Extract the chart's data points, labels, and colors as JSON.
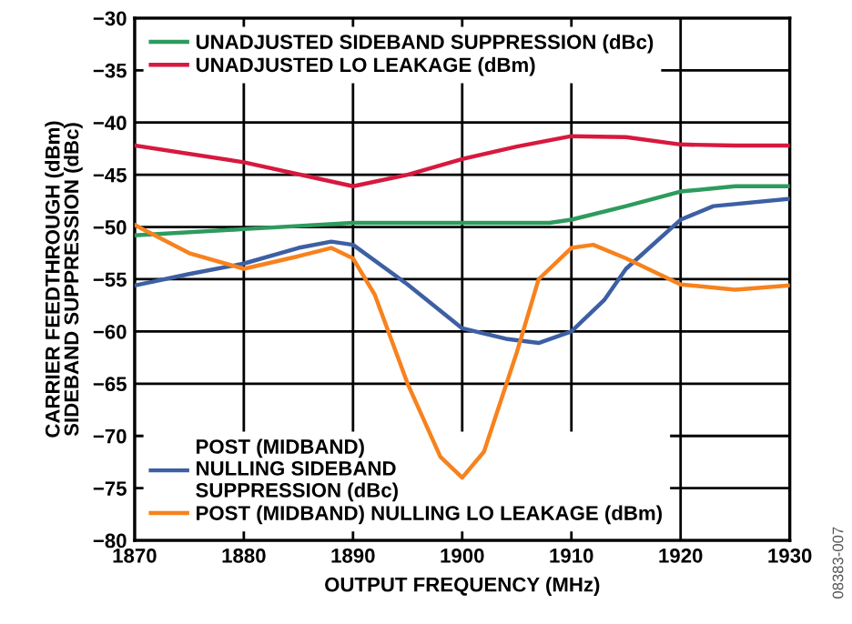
{
  "chart_data": {
    "type": "line",
    "xlabel": "OUTPUT FREQUENCY (MHz)",
    "ylabel": "CARRIER FEEDTHROUGH (dBm)\nSIDEBAND SUPPRESSION (dBc)",
    "xlim": [
      1870,
      1930
    ],
    "xticks": [
      1870,
      1880,
      1890,
      1900,
      1910,
      1920,
      1930
    ],
    "ylim": [
      -80,
      -30
    ],
    "yticks": [
      {
        "value": -80,
        "label": "−80"
      },
      {
        "value": -75,
        "label": "−75"
      },
      {
        "value": -70,
        "label": "−70"
      },
      {
        "value": -65,
        "label": "−65"
      },
      {
        "value": -60,
        "label": "−60"
      },
      {
        "value": -55,
        "label": "−55"
      },
      {
        "value": -50,
        "label": "−50"
      },
      {
        "value": -45,
        "label": "−45"
      },
      {
        "value": -40,
        "label": "−40"
      },
      {
        "value": -35,
        "label": "−35"
      },
      {
        "value": -30,
        "label": "−30"
      }
    ],
    "grid": true,
    "legend": "left",
    "annotations": [
      "08383-007"
    ],
    "series": [
      {
        "name": "UNADJUSTED SIDEBAND SUPPRESSION (dBc)",
        "color": "#2e9b5e",
        "x": [
          1870,
          1880,
          1890,
          1900,
          1908,
          1910,
          1915,
          1920,
          1925,
          1930
        ],
        "values": [
          -50.8,
          -50.2,
          -49.6,
          -49.6,
          -49.6,
          -49.3,
          -48,
          -46.6,
          -46.1,
          -46.1
        ]
      },
      {
        "name": "UNADJUSTED LO LEAKAGE (dBm)",
        "color": "#d7193f",
        "x": [
          1870,
          1880,
          1890,
          1895,
          1900,
          1905,
          1910,
          1915,
          1920,
          1925,
          1930
        ],
        "values": [
          -42.2,
          -43.8,
          -46.1,
          -45,
          -43.5,
          -42.3,
          -41.3,
          -41.4,
          -42.1,
          -42.2,
          -42.2
        ]
      },
      {
        "name": "POST (MIDBAND)\nNULLING SIDEBAND\nSUPPRESSION (dBc)",
        "color": "#3d5fa3",
        "x": [
          1870,
          1875,
          1880,
          1885,
          1888,
          1890,
          1895,
          1900,
          1904,
          1907,
          1910,
          1913,
          1915,
          1920,
          1923,
          1930
        ],
        "values": [
          -55.6,
          -54.5,
          -53.5,
          -52,
          -51.4,
          -51.7,
          -55.5,
          -59.7,
          -60.7,
          -61.1,
          -60,
          -57,
          -54,
          -49.3,
          -48,
          -47.3
        ]
      },
      {
        "name": "POST (MIDBAND) NULLING LO LEAKAGE (dBm)",
        "color": "#f7821e",
        "x": [
          1870,
          1875,
          1880,
          1885,
          1888,
          1890,
          1892,
          1895,
          1898,
          1900,
          1902,
          1905,
          1907,
          1910,
          1912,
          1915,
          1920,
          1925,
          1930
        ],
        "values": [
          -49.8,
          -52.5,
          -54,
          -52.8,
          -52,
          -53,
          -56.5,
          -65,
          -72,
          -74,
          -71.5,
          -62,
          -55,
          -52,
          -51.7,
          -53,
          -55.5,
          -56,
          -55.6
        ]
      }
    ]
  }
}
